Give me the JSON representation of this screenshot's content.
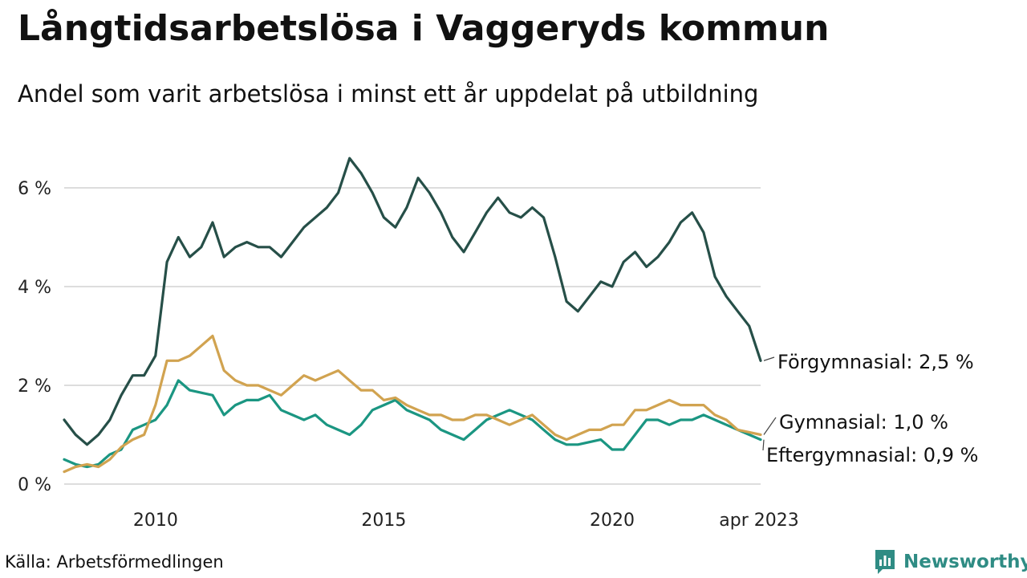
{
  "header": {
    "title": "Långtidsarbetslösa i Vaggeryds kommun",
    "subtitle": "Andel som varit arbetslösa i minst ett år uppdelat på utbildning"
  },
  "footer": {
    "source": "Källa: Arbetsförmedlingen",
    "brand": "Newsworthy"
  },
  "colors": {
    "forgymnasial": "#264f48",
    "gymnasial": "#d1a350",
    "eftergymnasial": "#1b9682",
    "grid": "#dddddd",
    "brand": "#2f8c84"
  },
  "chart_data": {
    "type": "line",
    "title": "Långtidsarbetslösa i Vaggeryds kommun",
    "subtitle": "Andel som varit arbetslösa i minst ett år uppdelat på utbildning",
    "xlabel": "",
    "ylabel": "",
    "x_ticks": [
      "2010",
      "2015",
      "2020",
      "apr 2023"
    ],
    "y_ticks": [
      "0 %",
      "2 %",
      "4 %",
      "6 %"
    ],
    "xlim": [
      "2008-01",
      "2023-04"
    ],
    "ylim": [
      0,
      7
    ],
    "grid": "horizontal",
    "legend": "direct labels at line ends (right)",
    "series": [
      {
        "name": "Förgymnasial",
        "end_label": "Förgymnasial: 2,5 %",
        "color": "#264f48",
        "x": [
          "2008-01",
          "2008-04",
          "2008-07",
          "2008-10",
          "2009-01",
          "2009-04",
          "2009-07",
          "2009-10",
          "2010-01",
          "2010-04",
          "2010-07",
          "2010-10",
          "2011-01",
          "2011-04",
          "2011-07",
          "2011-10",
          "2012-01",
          "2012-04",
          "2012-07",
          "2012-10",
          "2013-01",
          "2013-04",
          "2013-07",
          "2013-10",
          "2014-01",
          "2014-04",
          "2014-07",
          "2014-10",
          "2015-01",
          "2015-04",
          "2015-07",
          "2015-10",
          "2016-01",
          "2016-04",
          "2016-07",
          "2016-10",
          "2017-01",
          "2017-04",
          "2017-07",
          "2017-10",
          "2018-01",
          "2018-04",
          "2018-07",
          "2018-10",
          "2019-01",
          "2019-04",
          "2019-07",
          "2019-10",
          "2020-01",
          "2020-04",
          "2020-07",
          "2020-10",
          "2021-01",
          "2021-04",
          "2021-07",
          "2021-10",
          "2022-01",
          "2022-04",
          "2022-07",
          "2022-10",
          "2023-01",
          "2023-04"
        ],
        "y": [
          1.3,
          1.0,
          0.8,
          1.0,
          1.3,
          1.8,
          2.2,
          2.2,
          2.6,
          4.5,
          5.0,
          4.6,
          4.8,
          5.3,
          4.6,
          4.8,
          4.9,
          4.8,
          4.8,
          4.6,
          4.9,
          5.2,
          5.4,
          5.6,
          5.9,
          6.6,
          6.3,
          5.9,
          5.4,
          5.2,
          5.6,
          6.2,
          5.9,
          5.5,
          5.0,
          4.7,
          5.1,
          5.5,
          5.8,
          5.5,
          5.4,
          5.6,
          5.4,
          4.6,
          3.7,
          3.5,
          3.8,
          4.1,
          4.0,
          4.5,
          4.7,
          4.4,
          4.6,
          4.9,
          5.3,
          5.5,
          5.1,
          4.2,
          3.8,
          3.5,
          3.2,
          2.5
        ]
      },
      {
        "name": "Gymnasial",
        "end_label": "Gymnasial: 1,0 %",
        "color": "#d1a350",
        "x": [
          "2008-01",
          "2008-04",
          "2008-07",
          "2008-10",
          "2009-01",
          "2009-04",
          "2009-07",
          "2009-10",
          "2010-01",
          "2010-04",
          "2010-07",
          "2010-10",
          "2011-01",
          "2011-04",
          "2011-07",
          "2011-10",
          "2012-01",
          "2012-04",
          "2012-07",
          "2012-10",
          "2013-01",
          "2013-04",
          "2013-07",
          "2013-10",
          "2014-01",
          "2014-04",
          "2014-07",
          "2014-10",
          "2015-01",
          "2015-04",
          "2015-07",
          "2015-10",
          "2016-01",
          "2016-04",
          "2016-07",
          "2016-10",
          "2017-01",
          "2017-04",
          "2017-07",
          "2017-10",
          "2018-01",
          "2018-04",
          "2018-07",
          "2018-10",
          "2019-01",
          "2019-04",
          "2019-07",
          "2019-10",
          "2020-01",
          "2020-04",
          "2020-07",
          "2020-10",
          "2021-01",
          "2021-04",
          "2021-07",
          "2021-10",
          "2022-01",
          "2022-04",
          "2022-07",
          "2022-10",
          "2023-01",
          "2023-04"
        ],
        "y": [
          0.25,
          0.35,
          0.4,
          0.35,
          0.5,
          0.75,
          0.9,
          1.0,
          1.6,
          2.5,
          2.5,
          2.6,
          2.8,
          3.0,
          2.3,
          2.1,
          2.0,
          2.0,
          1.9,
          1.8,
          2.0,
          2.2,
          2.1,
          2.2,
          2.3,
          2.1,
          1.9,
          1.9,
          1.7,
          1.75,
          1.6,
          1.5,
          1.4,
          1.4,
          1.3,
          1.3,
          1.4,
          1.4,
          1.3,
          1.2,
          1.3,
          1.4,
          1.2,
          1.0,
          0.9,
          1.0,
          1.1,
          1.1,
          1.2,
          1.2,
          1.5,
          1.5,
          1.6,
          1.7,
          1.6,
          1.6,
          1.6,
          1.4,
          1.3,
          1.1,
          1.05,
          1.0
        ]
      },
      {
        "name": "Eftergymnasial",
        "end_label": "Eftergymnasial: 0,9 %",
        "color": "#1b9682",
        "x": [
          "2008-01",
          "2008-04",
          "2008-07",
          "2008-10",
          "2009-01",
          "2009-04",
          "2009-07",
          "2009-10",
          "2010-01",
          "2010-04",
          "2010-07",
          "2010-10",
          "2011-01",
          "2011-04",
          "2011-07",
          "2011-10",
          "2012-01",
          "2012-04",
          "2012-07",
          "2012-10",
          "2013-01",
          "2013-04",
          "2013-07",
          "2013-10",
          "2014-01",
          "2014-04",
          "2014-07",
          "2014-10",
          "2015-01",
          "2015-04",
          "2015-07",
          "2015-10",
          "2016-01",
          "2016-04",
          "2016-07",
          "2016-10",
          "2017-01",
          "2017-04",
          "2017-07",
          "2017-10",
          "2018-01",
          "2018-04",
          "2018-07",
          "2018-10",
          "2019-01",
          "2019-04",
          "2019-07",
          "2019-10",
          "2020-01",
          "2020-04",
          "2020-07",
          "2020-10",
          "2021-01",
          "2021-04",
          "2021-07",
          "2021-10",
          "2022-01",
          "2022-04",
          "2022-07",
          "2022-10",
          "2023-01",
          "2023-04"
        ],
        "y": [
          0.5,
          0.4,
          0.35,
          0.4,
          0.6,
          0.7,
          1.1,
          1.2,
          1.3,
          1.6,
          2.1,
          1.9,
          1.85,
          1.8,
          1.4,
          1.6,
          1.7,
          1.7,
          1.8,
          1.5,
          1.4,
          1.3,
          1.4,
          1.2,
          1.1,
          1.0,
          1.2,
          1.5,
          1.6,
          1.7,
          1.5,
          1.4,
          1.3,
          1.1,
          1.0,
          0.9,
          1.1,
          1.3,
          1.4,
          1.5,
          1.4,
          1.3,
          1.1,
          0.9,
          0.8,
          0.8,
          0.85,
          0.9,
          0.7,
          0.7,
          1.0,
          1.3,
          1.3,
          1.2,
          1.3,
          1.3,
          1.4,
          1.3,
          1.2,
          1.1,
          1.0,
          0.9
        ]
      }
    ]
  }
}
